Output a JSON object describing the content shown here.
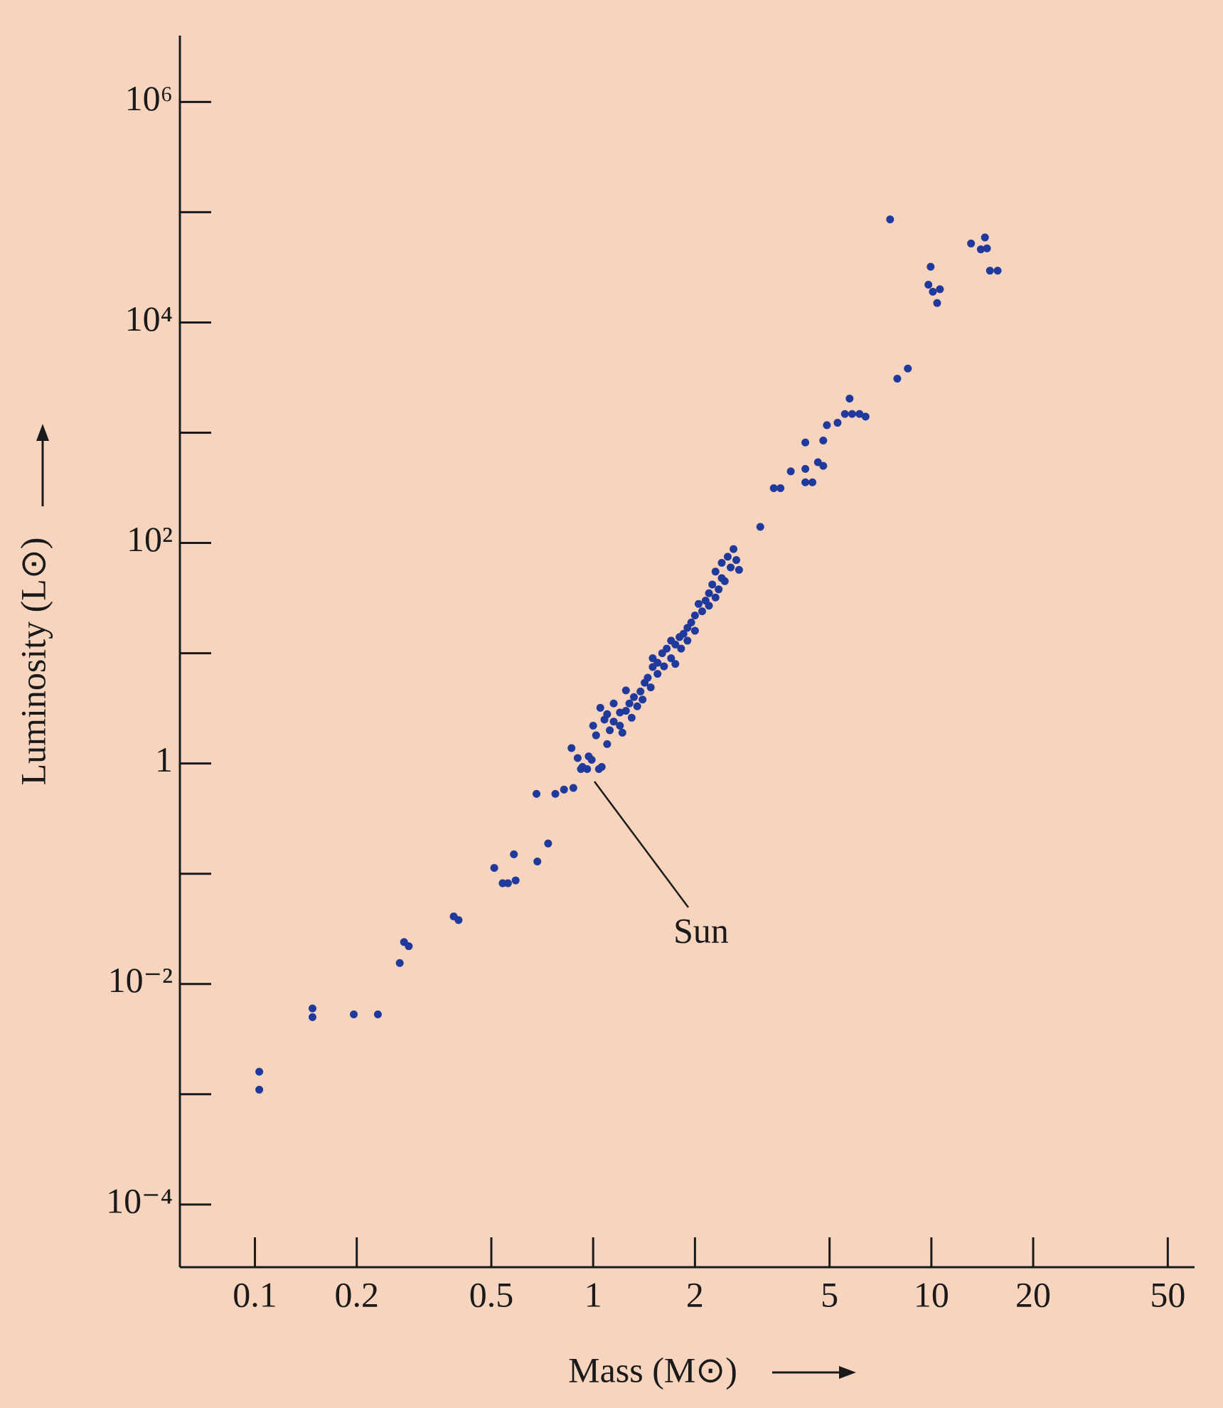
{
  "chart_data": {
    "type": "scatter",
    "x_label": "Mass (M⊙)",
    "y_label": "Luminosity (L⊙)",
    "annotation": "Sun",
    "xscale": "log",
    "yscale": "log",
    "color": "#1f3a9c",
    "xlim": [
      0.06,
      60
    ],
    "ylim": [
      2.7e-05,
      4000000
    ],
    "xticks": [
      0.1,
      0.2,
      0.5,
      1,
      2,
      5,
      10,
      20,
      50
    ],
    "yticks": [
      {
        "value": 0.0001,
        "label": "10⁻⁴"
      },
      {
        "value": 0.01,
        "label": "10⁻²"
      },
      1,
      {
        "value": 100,
        "label": "10²"
      },
      {
        "value": 10000,
        "label": "10⁴"
      },
      {
        "value": 1000000,
        "label": "10⁶"
      }
    ],
    "yminorticks": [
      0.001,
      0.1,
      10,
      1000,
      100000
    ],
    "x": [
      0.103,
      0.103,
      0.148,
      0.148,
      0.196,
      0.231,
      0.268,
      0.276,
      0.285,
      0.387,
      0.4,
      0.51,
      0.54,
      0.56,
      0.583,
      0.59,
      0.684,
      0.736,
      0.68,
      0.773,
      0.82,
      0.874,
      0.863,
      0.9,
      0.93,
      0.97,
      0.92,
      0.96,
      0.99,
      1.04,
      1.06,
      1.0,
      1.02,
      1.05,
      1.08,
      1.1,
      1.1,
      1.12,
      1.15,
      1.15,
      1.2,
      1.2,
      1.22,
      1.25,
      1.25,
      1.28,
      1.3,
      1.32,
      1.35,
      1.38,
      1.4,
      1.42,
      1.45,
      1.48,
      1.5,
      1.5,
      1.55,
      1.55,
      1.6,
      1.62,
      1.65,
      1.7,
      1.7,
      1.75,
      1.75,
      1.8,
      1.82,
      1.85,
      1.9,
      1.9,
      1.95,
      2.0,
      2.0,
      2.05,
      2.1,
      2.15,
      2.2,
      2.2,
      2.25,
      2.3,
      2.3,
      2.35,
      2.4,
      2.4,
      2.45,
      2.5,
      2.55,
      2.6,
      2.65,
      2.7,
      3.12,
      3.42,
      3.58,
      3.84,
      4.24,
      4.24,
      4.45,
      4.24,
      4.62,
      4.79,
      4.79,
      4.91,
      5.28,
      5.55,
      5.73,
      5.83,
      6.13,
      6.39,
      7.93,
      8.52,
      7.55,
      9.95,
      9.8,
      10.1,
      10.6,
      10.4,
      13.1,
      14.0,
      14.6,
      14.4,
      14.9,
      15.7
    ],
    "y": [
      0.0016,
      0.0011,
      0.006,
      0.005,
      0.0053,
      0.0053,
      0.0155,
      0.024,
      0.022,
      0.041,
      0.038,
      0.113,
      0.082,
      0.082,
      0.15,
      0.087,
      0.129,
      0.188,
      0.53,
      0.53,
      0.58,
      0.6,
      1.38,
      1.12,
      0.93,
      1.16,
      0.89,
      0.89,
      1.08,
      0.89,
      0.93,
      2.2,
      1.8,
      3.2,
      2.5,
      1.5,
      2.8,
      2.0,
      2.4,
      3.5,
      2.9,
      2.2,
      1.9,
      3.0,
      4.6,
      3.5,
      2.6,
      4.0,
      3.3,
      4.5,
      3.8,
      5.4,
      6.0,
      4.9,
      7.5,
      9.0,
      6.5,
      8.2,
      10,
      7.6,
      11,
      9,
      13,
      12,
      8,
      14,
      11,
      15,
      17,
      13,
      19,
      22,
      16,
      28,
      24,
      30,
      35,
      27,
      42,
      32,
      55,
      38,
      48,
      66,
      45,
      75,
      60,
      88,
      70,
      57,
      140,
      314,
      314,
      446,
      470,
      355,
      355,
      815,
      540,
      500,
      850,
      1170,
      1230,
      1480,
      2040,
      1480,
      1480,
      1400,
      3090,
      3820,
      86000,
      32000,
      22000,
      19000,
      20000,
      15000,
      52000,
      46000,
      47000,
      59000,
      29500,
      29500
    ]
  }
}
